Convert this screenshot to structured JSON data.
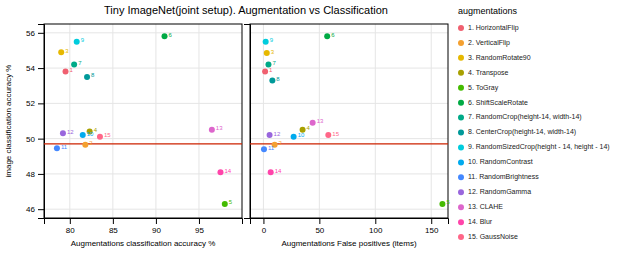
{
  "chart_data": [
    {
      "type": "scatter",
      "title": "Tiny ImageNet(joint setup). Augmentation vs Classification",
      "xlabel": "Augmentations classification accuracy %",
      "ylabel": "image classification accuracy %",
      "xlim": [
        77,
        100
      ],
      "ylim": [
        45.5,
        56.5
      ],
      "xticks": [
        80,
        85,
        90,
        95
      ],
      "yticks": [
        46,
        48,
        50,
        52,
        54,
        56
      ],
      "grid": true,
      "legend": "right",
      "legend_title": "augmentations",
      "baseline": {
        "value": 49.7,
        "color": "#cc2200"
      },
      "series": [
        {
          "name": "1. HorizontalFlip",
          "color": "#f06070",
          "x": [
            79.5
          ],
          "values": [
            53.8
          ]
        },
        {
          "name": "2. VerticalFlip",
          "color": "#f4a030",
          "x": [
            81.8
          ],
          "values": [
            49.65
          ]
        },
        {
          "name": "3. RandomRotate90",
          "color": "#e6b800",
          "x": [
            79.0
          ],
          "values": [
            54.9
          ]
        },
        {
          "name": "4. Transpose",
          "color": "#a8a000",
          "x": [
            82.3
          ],
          "values": [
            50.4
          ]
        },
        {
          "name": "5. ToGray",
          "color": "#44bb00",
          "x": [
            98.0
          ],
          "values": [
            46.3
          ]
        },
        {
          "name": "6. ShiftScaleRotate",
          "color": "#00aa44",
          "x": [
            91.0
          ],
          "values": [
            55.8
          ]
        },
        {
          "name": "7. RandomCrop(height-14, width-14)",
          "color": "#00aa88",
          "x": [
            80.5
          ],
          "values": [
            54.2
          ]
        },
        {
          "name": "8. CenterCrop(height-14, width-14)",
          "color": "#009999",
          "x": [
            82.0
          ],
          "values": [
            53.5
          ]
        },
        {
          "name": "9. RandomSizedCrop(height - 14, height - 14)",
          "color": "#00ccdd",
          "x": [
            80.8
          ],
          "values": [
            55.5
          ]
        },
        {
          "name": "10. RandomContrast",
          "color": "#00aaee",
          "x": [
            81.5
          ],
          "values": [
            50.2
          ]
        },
        {
          "name": "11. RandomBrightness",
          "color": "#4488ff",
          "x": [
            78.5
          ],
          "values": [
            49.45
          ]
        },
        {
          "name": "12. RandomGamma",
          "color": "#9966dd",
          "x": [
            79.2
          ],
          "values": [
            50.3
          ]
        },
        {
          "name": "13. CLAHE",
          "color": "#dd66cc",
          "x": [
            96.5
          ],
          "values": [
            50.5
          ]
        },
        {
          "name": "14. Blur",
          "color": "#ff44aa",
          "x": [
            97.5
          ],
          "values": [
            48.1
          ]
        },
        {
          "name": "15. GaussNoise",
          "color": "#ff6688",
          "x": [
            83.5
          ],
          "values": [
            50.1
          ]
        }
      ],
      "annotations": [
        {
          "text": "1",
          "x": 79.5,
          "y": 53.8
        },
        {
          "text": "2",
          "x": 81.8,
          "y": 49.65
        },
        {
          "text": "3",
          "x": 79.0,
          "y": 54.9
        },
        {
          "text": "4",
          "x": 82.3,
          "y": 50.4
        },
        {
          "text": "5",
          "x": 98.0,
          "y": 46.3
        },
        {
          "text": "6",
          "x": 91.0,
          "y": 55.8
        },
        {
          "text": "7",
          "x": 80.5,
          "y": 54.2
        },
        {
          "text": "8",
          "x": 82.0,
          "y": 53.5
        },
        {
          "text": "9",
          "x": 80.8,
          "y": 55.5
        },
        {
          "text": "10",
          "x": 81.5,
          "y": 50.2
        },
        {
          "text": "11",
          "x": 78.5,
          "y": 49.45
        },
        {
          "text": "12",
          "x": 79.2,
          "y": 50.3
        },
        {
          "text": "13",
          "x": 96.5,
          "y": 50.5
        },
        {
          "text": "14",
          "x": 97.5,
          "y": 48.1
        },
        {
          "text": "15",
          "x": 83.5,
          "y": 50.1
        }
      ]
    },
    {
      "type": "scatter",
      "xlabel": "Augmentations False positives (items)",
      "xlim": [
        -12,
        165
      ],
      "ylim": [
        45.5,
        56.5
      ],
      "xticks": [
        0,
        50,
        100,
        150
      ],
      "yticks": [
        46,
        48,
        50,
        52,
        54,
        56
      ],
      "grid": true,
      "tick_labels": "x",
      "baseline": {
        "value": 49.7,
        "color": "#cc2200"
      },
      "series": [
        {
          "color": "#f06070",
          "x": [
            1.5
          ],
          "values": [
            53.8
          ]
        },
        {
          "color": "#f4a030",
          "x": [
            10.0
          ],
          "values": [
            49.65
          ]
        },
        {
          "color": "#e6b800",
          "x": [
            3.0
          ],
          "values": [
            54.85
          ]
        },
        {
          "color": "#a8a000",
          "x": [
            35.0
          ],
          "values": [
            50.5
          ]
        },
        {
          "color": "#44bb00",
          "x": [
            160.0
          ],
          "values": [
            46.3
          ]
        },
        {
          "color": "#00aa44",
          "x": [
            57.0
          ],
          "values": [
            55.8
          ]
        },
        {
          "color": "#00aa88",
          "x": [
            4.5
          ],
          "values": [
            54.2
          ]
        },
        {
          "color": "#009999",
          "x": [
            8.0
          ],
          "values": [
            53.3
          ]
        },
        {
          "color": "#00ccdd",
          "x": [
            2.0
          ],
          "values": [
            55.5
          ]
        },
        {
          "color": "#00aaee",
          "x": [
            27.0
          ],
          "values": [
            50.1
          ]
        },
        {
          "color": "#4488ff",
          "x": [
            0.5
          ],
          "values": [
            49.4
          ]
        },
        {
          "color": "#9966dd",
          "x": [
            5.5
          ],
          "values": [
            50.2
          ]
        },
        {
          "color": "#dd66cc",
          "x": [
            44.0
          ],
          "values": [
            50.9
          ]
        },
        {
          "color": "#ff44aa",
          "x": [
            6.5
          ],
          "values": [
            48.1
          ]
        },
        {
          "color": "#ff6688",
          "x": [
            58.0
          ],
          "values": [
            50.2
          ]
        }
      ],
      "annotations": [
        {
          "text": "1",
          "x": 1.5,
          "y": 53.8
        },
        {
          "text": "2",
          "x": 10.0,
          "y": 49.65
        },
        {
          "text": "3",
          "x": 3.0,
          "y": 54.85
        },
        {
          "text": "4",
          "x": 35.0,
          "y": 50.5
        },
        {
          "text": "5",
          "x": 160.0,
          "y": 46.3
        },
        {
          "text": "6",
          "x": 57.0,
          "y": 55.8
        },
        {
          "text": "7",
          "x": 4.5,
          "y": 54.2
        },
        {
          "text": "8",
          "x": 8.0,
          "y": 53.3
        },
        {
          "text": "9",
          "x": 2.0,
          "y": 55.5
        },
        {
          "text": "10",
          "x": 27.0,
          "y": 50.1
        },
        {
          "text": "11",
          "x": 0.5,
          "y": 49.4
        },
        {
          "text": "12",
          "x": 5.5,
          "y": 50.2
        },
        {
          "text": "13",
          "x": 44.0,
          "y": 50.9
        },
        {
          "text": "14",
          "x": 6.5,
          "y": 48.1
        },
        {
          "text": "15",
          "x": 58.0,
          "y": 50.2
        }
      ]
    }
  ]
}
